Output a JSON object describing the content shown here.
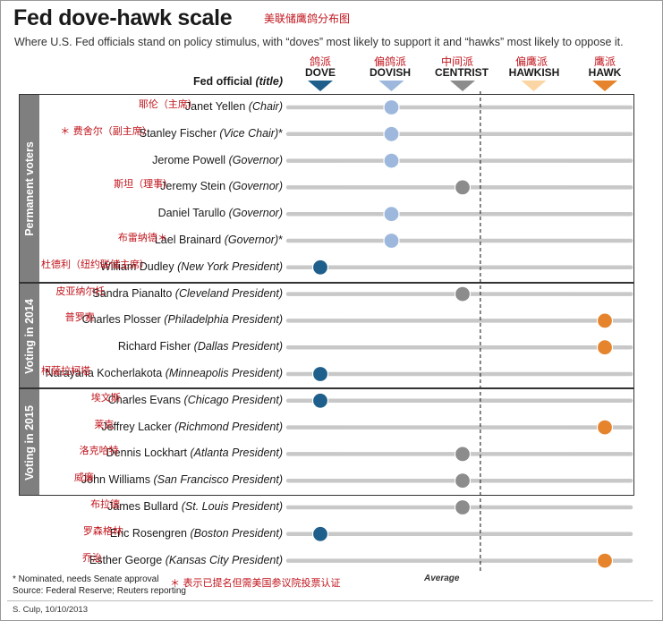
{
  "title": "Fed dove-hawk scale",
  "title_cn": "美联储鹰鸽分布图",
  "subtitle": "Where U.S. Fed officials stand on policy stimulus, with “doves” most likely to support it and “hawks” most likely to oppose it.",
  "column_header": {
    "name": "Fed official",
    "suffix": "(title)"
  },
  "scale": [
    {
      "key": "dove",
      "label": "DOVE",
      "label_cn": "鸽派",
      "color": "#1f5f8b"
    },
    {
      "key": "dovish",
      "label": "DOVISH",
      "label_cn": "偏鸽派",
      "color": "#9db8dc"
    },
    {
      "key": "centrist",
      "label": "CENTRIST",
      "label_cn": "中间派",
      "color": "#8c8c8c"
    },
    {
      "key": "hawkish",
      "label": "HAWKISH",
      "label_cn": "偏鹰派",
      "color": "#fbd6a4"
    },
    {
      "key": "hawk",
      "label": "HAWK",
      "label_cn": "鹰派",
      "color": "#e5842c"
    }
  ],
  "groups": [
    {
      "label": "Permanent voters",
      "rows": [
        0,
        6
      ]
    },
    {
      "label": "Voting in 2014",
      "rows": [
        7,
        10
      ]
    },
    {
      "label": "Voting in 2015",
      "rows": [
        11,
        14
      ]
    }
  ],
  "chart_data": {
    "type": "scatter",
    "title": "Fed dove-hawk scale",
    "xlabel": "",
    "ylabel": "",
    "x_categories": [
      "DOVE",
      "DOVISH",
      "CENTRIST",
      "HAWKISH",
      "HAWK"
    ],
    "average_label": "Average",
    "average": 2.25,
    "officials": [
      {
        "name": "Janet Yellen",
        "title": "(Chair)",
        "note": "耶伦（主席）",
        "position": "DOVISH"
      },
      {
        "name": "Stanley Fischer",
        "title": "(Vice Chair)",
        "star": "*",
        "note": "＊ 费舍尔（副主席）",
        "position": "DOVISH"
      },
      {
        "name": "Jerome Powell",
        "title": "(Governor)",
        "note": "",
        "position": "DOVISH"
      },
      {
        "name": "Jeremy Stein",
        "title": "(Governor)",
        "note": "斯坦（理事）",
        "position": "CENTRIST"
      },
      {
        "name": "Daniel Tarullo",
        "title": "(Governor)",
        "note": "",
        "position": "DOVISH"
      },
      {
        "name": "Lael Brainard",
        "title": "(Governor)",
        "star": "*",
        "note": "布雷纳德＊",
        "position": "DOVISH"
      },
      {
        "name": "William Dudley",
        "title": "(New York President)",
        "note": "杜德利（纽约联储主席）",
        "position": "DOVE"
      },
      {
        "name": "Sandra Pianalto",
        "title": "(Cleveland President)",
        "note": "皮亚纳尔托",
        "position": "CENTRIST"
      },
      {
        "name": "Charles Plosser",
        "title": "(Philadelphia President)",
        "note": "普罗索",
        "position": "HAWK"
      },
      {
        "name": "Richard Fisher",
        "title": "(Dallas President)",
        "note": "",
        "position": "HAWK"
      },
      {
        "name": "Narayana Kocherlakota",
        "title": "(Minneapolis President)",
        "note": "柯薩拉柯塔",
        "position": "DOVE"
      },
      {
        "name": "Charles Evans",
        "title": "(Chicago President)",
        "note": "埃文斯",
        "position": "DOVE"
      },
      {
        "name": "Jeffrey Lacker",
        "title": "(Richmond President)",
        "note": "莱克",
        "position": "HAWK"
      },
      {
        "name": "Dennis Lockhart",
        "title": "(Atlanta President)",
        "note": "洛克哈特",
        "position": "CENTRIST"
      },
      {
        "name": "John Williams",
        "title": "(San Francisco President)",
        "note": "威廉",
        "position": "CENTRIST"
      },
      {
        "name": "James Bullard",
        "title": "(St. Louis President)",
        "note": "布拉德",
        "position": "CENTRIST"
      },
      {
        "name": "Eric Rosengren",
        "title": "(Boston President)",
        "note": "罗森格林",
        "position": "DOVE"
      },
      {
        "name": "Esther George",
        "title": "(Kansas City President)",
        "note": "乔治",
        "position": "HAWK"
      }
    ]
  },
  "footnotes": {
    "nominated": "* Nominated, needs Senate approval",
    "source": "Source: Federal Reserve; Reuters reporting",
    "nominated_cn": "＊ 表示已提名但需美国参议院投票认证",
    "credit": "S. Culp, 10/10/2013"
  }
}
